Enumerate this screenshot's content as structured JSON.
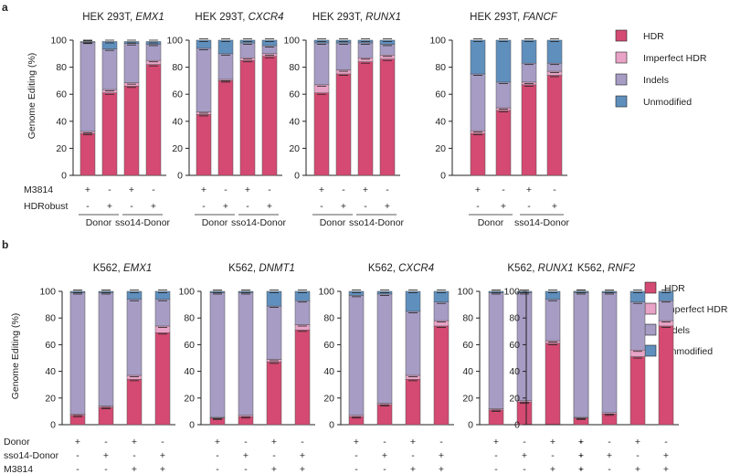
{
  "panels": [
    {
      "label": "a",
      "ylabel": "Genome Editing (%)",
      "yticks": [
        "0",
        "20",
        "40",
        "60",
        "80",
        "100"
      ],
      "condition_labels": [
        "M3814",
        "HDRobust"
      ],
      "condition_symbols": [
        [
          "+",
          "-",
          "+",
          "-"
        ],
        [
          "-",
          "+",
          "-",
          "+"
        ]
      ],
      "group_labels": [
        "Donor",
        "sso14-Donor"
      ],
      "legend": [
        "HDR",
        "Imperfect HDR",
        "Indels",
        "Unmodified"
      ]
    },
    {
      "label": "b",
      "ylabel": "Genome Editing (%)",
      "yticks": [
        "0",
        "20",
        "40",
        "60",
        "80",
        "100"
      ],
      "condition_labels": [
        "Donor",
        "sso14-Donor",
        "M3814"
      ],
      "condition_symbols": [
        [
          "+",
          "-",
          "+",
          "-"
        ],
        [
          "-",
          "+",
          "-",
          "+"
        ],
        [
          "-",
          "-",
          "+",
          "+"
        ]
      ],
      "legend": [
        "HDR",
        "Imperfect HDR",
        "Indels",
        "Unmodified"
      ]
    }
  ],
  "colors": {
    "HDR": "#d44a72",
    "Imperfect HDR": "#e8a3c6",
    "Indels": "#a69cc4",
    "Unmodified": "#5f8fbd"
  },
  "chart_data": [
    {
      "type": "bar",
      "stacked": true,
      "panel": "a",
      "title_prefix": "HEK 293T, ",
      "title_gene": "EMX1",
      "categories": [
        "M3814+ Donor",
        "HDRobust+ Donor",
        "M3814+ sso14-Donor",
        "HDRobust+ sso14-Donor"
      ],
      "ylim": [
        0,
        100
      ],
      "ylabel": "Genome Editing (%)",
      "series": [
        {
          "name": "HDR",
          "values": [
            31,
            61,
            66,
            82
          ]
        },
        {
          "name": "Imperfect HDR",
          "values": [
            1.5,
            2.5,
            2.5,
            3
          ]
        },
        {
          "name": "Indels",
          "values": [
            66,
            30,
            29,
            12
          ]
        },
        {
          "name": "Unmodified",
          "values": [
            0.5,
            5.5,
            1.5,
            2
          ]
        }
      ]
    },
    {
      "type": "bar",
      "stacked": true,
      "panel": "a",
      "title_prefix": "HEK 293T, ",
      "title_gene": "CXCR4",
      "categories": [
        "M3814+ Donor",
        "HDRobust+ Donor",
        "M3814+ sso14-Donor",
        "HDRobust+ sso14-Donor"
      ],
      "ylim": [
        0,
        100
      ],
      "ylabel": "Genome Editing (%)",
      "series": [
        {
          "name": "HDR",
          "values": [
            45,
            70,
            85,
            88
          ]
        },
        {
          "name": "Imperfect HDR",
          "values": [
            2,
            1,
            2,
            2
          ]
        },
        {
          "name": "Indels",
          "values": [
            47,
            19,
            11,
            6
          ]
        },
        {
          "name": "Unmodified",
          "values": [
            6,
            10,
            2,
            4
          ]
        }
      ]
    },
    {
      "type": "bar",
      "stacked": true,
      "panel": "a",
      "title_prefix": "HEK 293T, ",
      "title_gene": "RUNX1",
      "categories": [
        "M3814+ Donor",
        "HDRobust+ Donor",
        "M3814+ sso14-Donor",
        "HDRobust+ sso14-Donor"
      ],
      "ylim": [
        0,
        100
      ],
      "ylabel": "Genome Editing (%)",
      "series": [
        {
          "name": "HDR",
          "values": [
            61,
            75,
            84,
            86
          ]
        },
        {
          "name": "Imperfect HDR",
          "values": [
            6,
            3,
            3,
            3
          ]
        },
        {
          "name": "Indels",
          "values": [
            31,
            20,
            11,
            8
          ]
        },
        {
          "name": "Unmodified",
          "values": [
            2,
            2,
            2,
            3
          ]
        }
      ]
    },
    {
      "type": "bar",
      "stacked": true,
      "panel": "a",
      "title_prefix": "HEK 293T, ",
      "title_gene": "FANCF",
      "categories": [
        "M3814+ Donor",
        "HDRobust+ Donor",
        "M3814+ sso14-Donor",
        "HDRobust+ sso14-Donor"
      ],
      "ylim": [
        0,
        100
      ],
      "ylabel": "Genome Editing (%)",
      "series": [
        {
          "name": "HDR",
          "values": [
            31,
            48,
            67,
            74
          ]
        },
        {
          "name": "Imperfect HDR",
          "values": [
            2,
            2,
            2,
            3
          ]
        },
        {
          "name": "Indels",
          "values": [
            42,
            19,
            14,
            6
          ]
        },
        {
          "name": "Unmodified",
          "values": [
            25,
            31,
            17,
            17
          ]
        }
      ]
    },
    {
      "type": "bar",
      "stacked": true,
      "panel": "b",
      "title_prefix": "K562, ",
      "title_gene": "EMX1",
      "categories": [
        "Donor",
        "sso14-Donor",
        "Donor+M3814",
        "sso14-Donor+M3814"
      ],
      "ylim": [
        0,
        100
      ],
      "ylabel": "Genome Editing (%)",
      "series": [
        {
          "name": "HDR",
          "values": [
            7,
            13,
            34,
            69
          ]
        },
        {
          "name": "Imperfect HDR",
          "values": [
            1,
            1,
            3,
            5
          ]
        },
        {
          "name": "Indels",
          "values": [
            91,
            85,
            57,
            20
          ]
        },
        {
          "name": "Unmodified",
          "values": [
            1,
            1,
            6,
            6
          ]
        }
      ]
    },
    {
      "type": "bar",
      "stacked": true,
      "panel": "b",
      "title_prefix": "K562,  ",
      "title_gene": "DNMT1",
      "categories": [
        "Donor",
        "sso14-Donor",
        "Donor+M3814",
        "sso14-Donor+M3814"
      ],
      "ylim": [
        0,
        100
      ],
      "ylabel": "Genome Editing (%)",
      "series": [
        {
          "name": "HDR",
          "values": [
            5,
            6,
            47,
            71
          ]
        },
        {
          "name": "Imperfect HDR",
          "values": [
            0.5,
            1,
            2,
            4
          ]
        },
        {
          "name": "Indels",
          "values": [
            93.5,
            92,
            40,
            18
          ]
        },
        {
          "name": "Unmodified",
          "values": [
            1,
            1,
            11,
            7
          ]
        }
      ]
    },
    {
      "type": "bar",
      "stacked": true,
      "panel": "b",
      "title_prefix": "K562,  ",
      "title_gene": "CXCR4",
      "categories": [
        "Donor",
        "sso14-Donor",
        "Donor+M3814",
        "sso14-Donor+M3814"
      ],
      "ylim": [
        0,
        100
      ],
      "ylabel": "Genome Editing (%)",
      "series": [
        {
          "name": "HDR",
          "values": [
            6,
            15,
            34,
            74
          ]
        },
        {
          "name": "Imperfect HDR",
          "values": [
            1,
            1,
            3,
            4
          ]
        },
        {
          "name": "Indels",
          "values": [
            90,
            82,
            48,
            14
          ]
        },
        {
          "name": "Unmodified",
          "values": [
            3,
            2,
            15,
            8
          ]
        }
      ]
    },
    {
      "type": "bar",
      "stacked": true,
      "panel": "b",
      "title_prefix": "K562,  ",
      "title_gene": "RUNX1",
      "categories": [
        "Donor",
        "sso14-Donor",
        "Donor+M3814",
        "sso14-Donor+M3814"
      ],
      "ylim": [
        0,
        100
      ],
      "ylabel": "",
      "series": [
        {
          "name": "HDR",
          "values": [
            11,
            17,
            61,
            87
          ]
        },
        {
          "name": "Imperfect HDR",
          "values": [
            1,
            1,
            2,
            5
          ]
        },
        {
          "name": "Indels",
          "values": [
            87,
            81,
            31,
            5
          ]
        },
        {
          "name": "Unmodified",
          "values": [
            1,
            1,
            6,
            3
          ]
        }
      ]
    },
    {
      "type": "bar",
      "stacked": true,
      "panel": "b",
      "title_prefix": "K562,  ",
      "title_gene": "RNF2",
      "categories": [
        "Donor",
        "sso14-Donor",
        "Donor+M3814",
        "sso14-Donor+M3814"
      ],
      "ylim": [
        0,
        100
      ],
      "ylabel": "",
      "series": [
        {
          "name": "HDR",
          "values": [
            5,
            8,
            51,
            74
          ]
        },
        {
          "name": "Imperfect HDR",
          "values": [
            0.5,
            1,
            5,
            4
          ]
        },
        {
          "name": "Indels",
          "values": [
            93.5,
            90,
            36,
            15
          ]
        },
        {
          "name": "Unmodified",
          "values": [
            1,
            1,
            8,
            7
          ]
        }
      ]
    }
  ]
}
